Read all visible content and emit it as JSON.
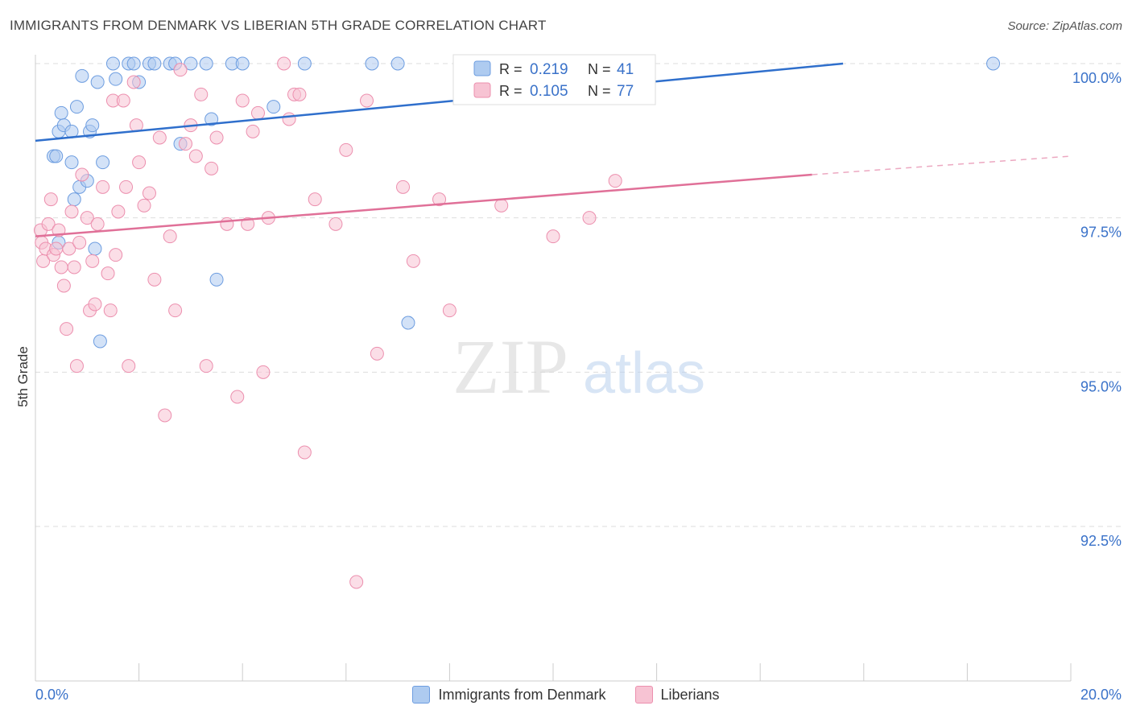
{
  "title": "IMMIGRANTS FROM DENMARK VS LIBERIAN 5TH GRADE CORRELATION CHART",
  "source": "Source: ZipAtlas.com",
  "watermark": {
    "zip": "ZIP",
    "atlas": "atlas"
  },
  "colors": {
    "blue_fill": "#aecbf0",
    "blue_stroke": "#6d9de0",
    "blue_line": "#2f6fcc",
    "pink_fill": "#f7c3d3",
    "pink_stroke": "#ec8fae",
    "pink_line": "#e07098",
    "axis_text": "#3a72c9",
    "grid": "#dddddd"
  },
  "chart_data": {
    "type": "scatter",
    "title": "IMMIGRANTS FROM DENMARK VS LIBERIAN 5TH GRADE CORRELATION CHART",
    "xlabel": "",
    "ylabel": "5th Grade",
    "xlim": [
      0.0,
      20.0
    ],
    "ylim": [
      90.0,
      100.0
    ],
    "x_tick_labels": [
      "0.0%",
      "20.0%"
    ],
    "y_ticks": [
      92.5,
      95.0,
      97.5,
      100.0
    ],
    "y_tick_labels": [
      "92.5%",
      "95.0%",
      "97.5%",
      "100.0%"
    ],
    "legend_stats": [
      {
        "r_label": "R =",
        "r_value": "0.219",
        "n_label": "N =",
        "n_value": "41"
      },
      {
        "r_label": "R =",
        "r_value": "0.105",
        "n_label": "N =",
        "n_value": "77"
      }
    ],
    "series": [
      {
        "name": "Immigrants from Denmark",
        "color": "blue",
        "trend": {
          "x": [
            0.0,
            15.6
          ],
          "y": [
            98.75,
            100.0
          ],
          "dashed_to": null
        },
        "points": [
          [
            0.35,
            98.5
          ],
          [
            0.4,
            98.5
          ],
          [
            0.45,
            98.9
          ],
          [
            0.45,
            97.1
          ],
          [
            0.5,
            99.2
          ],
          [
            0.55,
            99.0
          ],
          [
            0.7,
            98.9
          ],
          [
            0.7,
            98.4
          ],
          [
            0.75,
            97.8
          ],
          [
            0.8,
            99.3
          ],
          [
            0.85,
            98.0
          ],
          [
            0.9,
            99.8
          ],
          [
            1.0,
            98.1
          ],
          [
            1.05,
            98.9
          ],
          [
            1.1,
            99.0
          ],
          [
            1.15,
            97.0
          ],
          [
            1.2,
            99.7
          ],
          [
            1.25,
            95.5
          ],
          [
            1.3,
            98.4
          ],
          [
            1.5,
            100.0
          ],
          [
            1.55,
            99.75
          ],
          [
            1.8,
            100.0
          ],
          [
            1.9,
            100.0
          ],
          [
            2.0,
            99.7
          ],
          [
            2.2,
            100.0
          ],
          [
            2.3,
            100.0
          ],
          [
            2.6,
            100.0
          ],
          [
            2.7,
            100.0
          ],
          [
            2.8,
            98.7
          ],
          [
            3.0,
            100.0
          ],
          [
            3.3,
            100.0
          ],
          [
            3.4,
            99.1
          ],
          [
            3.5,
            96.5
          ],
          [
            3.8,
            100.0
          ],
          [
            4.0,
            100.0
          ],
          [
            4.6,
            99.3
          ],
          [
            5.2,
            100.0
          ],
          [
            6.5,
            100.0
          ],
          [
            7.0,
            100.0
          ],
          [
            7.2,
            95.8
          ],
          [
            18.5,
            100.0
          ]
        ]
      },
      {
        "name": "Liberians",
        "color": "pink",
        "trend": {
          "x": [
            0.0,
            15.0
          ],
          "y": [
            97.2,
            98.2
          ],
          "dashed_to": [
            20.0,
            98.5
          ]
        },
        "points": [
          [
            0.1,
            97.3
          ],
          [
            0.12,
            97.1
          ],
          [
            0.15,
            96.8
          ],
          [
            0.2,
            97.0
          ],
          [
            0.25,
            97.4
          ],
          [
            0.3,
            97.8
          ],
          [
            0.35,
            96.9
          ],
          [
            0.4,
            97.0
          ],
          [
            0.45,
            97.3
          ],
          [
            0.5,
            96.7
          ],
          [
            0.55,
            96.4
          ],
          [
            0.6,
            95.7
          ],
          [
            0.65,
            97.0
          ],
          [
            0.7,
            97.6
          ],
          [
            0.75,
            96.7
          ],
          [
            0.8,
            95.1
          ],
          [
            0.85,
            97.1
          ],
          [
            0.9,
            98.2
          ],
          [
            1.0,
            97.5
          ],
          [
            1.05,
            96.0
          ],
          [
            1.1,
            96.8
          ],
          [
            1.15,
            96.1
          ],
          [
            1.2,
            97.4
          ],
          [
            1.3,
            98.0
          ],
          [
            1.4,
            96.6
          ],
          [
            1.45,
            96.0
          ],
          [
            1.5,
            99.4
          ],
          [
            1.55,
            96.9
          ],
          [
            1.6,
            97.6
          ],
          [
            1.7,
            99.4
          ],
          [
            1.75,
            98.0
          ],
          [
            1.8,
            95.1
          ],
          [
            1.9,
            99.7
          ],
          [
            1.95,
            99.0
          ],
          [
            2.0,
            98.4
          ],
          [
            2.1,
            97.7
          ],
          [
            2.2,
            97.9
          ],
          [
            2.3,
            96.5
          ],
          [
            2.4,
            98.8
          ],
          [
            2.5,
            94.3
          ],
          [
            2.6,
            97.2
          ],
          [
            2.7,
            96.0
          ],
          [
            2.8,
            99.9
          ],
          [
            2.9,
            98.7
          ],
          [
            3.0,
            99.0
          ],
          [
            3.1,
            98.5
          ],
          [
            3.2,
            99.5
          ],
          [
            3.3,
            95.1
          ],
          [
            3.4,
            98.3
          ],
          [
            3.5,
            98.8
          ],
          [
            3.7,
            97.4
          ],
          [
            3.9,
            94.6
          ],
          [
            4.0,
            99.4
          ],
          [
            4.1,
            97.4
          ],
          [
            4.2,
            98.9
          ],
          [
            4.3,
            99.2
          ],
          [
            4.4,
            95.0
          ],
          [
            4.5,
            97.5
          ],
          [
            4.8,
            100.0
          ],
          [
            4.9,
            99.1
          ],
          [
            5.0,
            99.5
          ],
          [
            5.1,
            99.5
          ],
          [
            5.2,
            93.7
          ],
          [
            5.4,
            97.8
          ],
          [
            5.8,
            97.4
          ],
          [
            6.0,
            98.6
          ],
          [
            6.2,
            91.6
          ],
          [
            6.4,
            99.4
          ],
          [
            6.6,
            95.3
          ],
          [
            7.1,
            98.0
          ],
          [
            7.3,
            96.8
          ],
          [
            7.8,
            97.8
          ],
          [
            8.0,
            96.0
          ],
          [
            9.0,
            97.7
          ],
          [
            10.0,
            97.2
          ],
          [
            10.7,
            97.5
          ],
          [
            11.2,
            98.1
          ]
        ]
      }
    ]
  }
}
